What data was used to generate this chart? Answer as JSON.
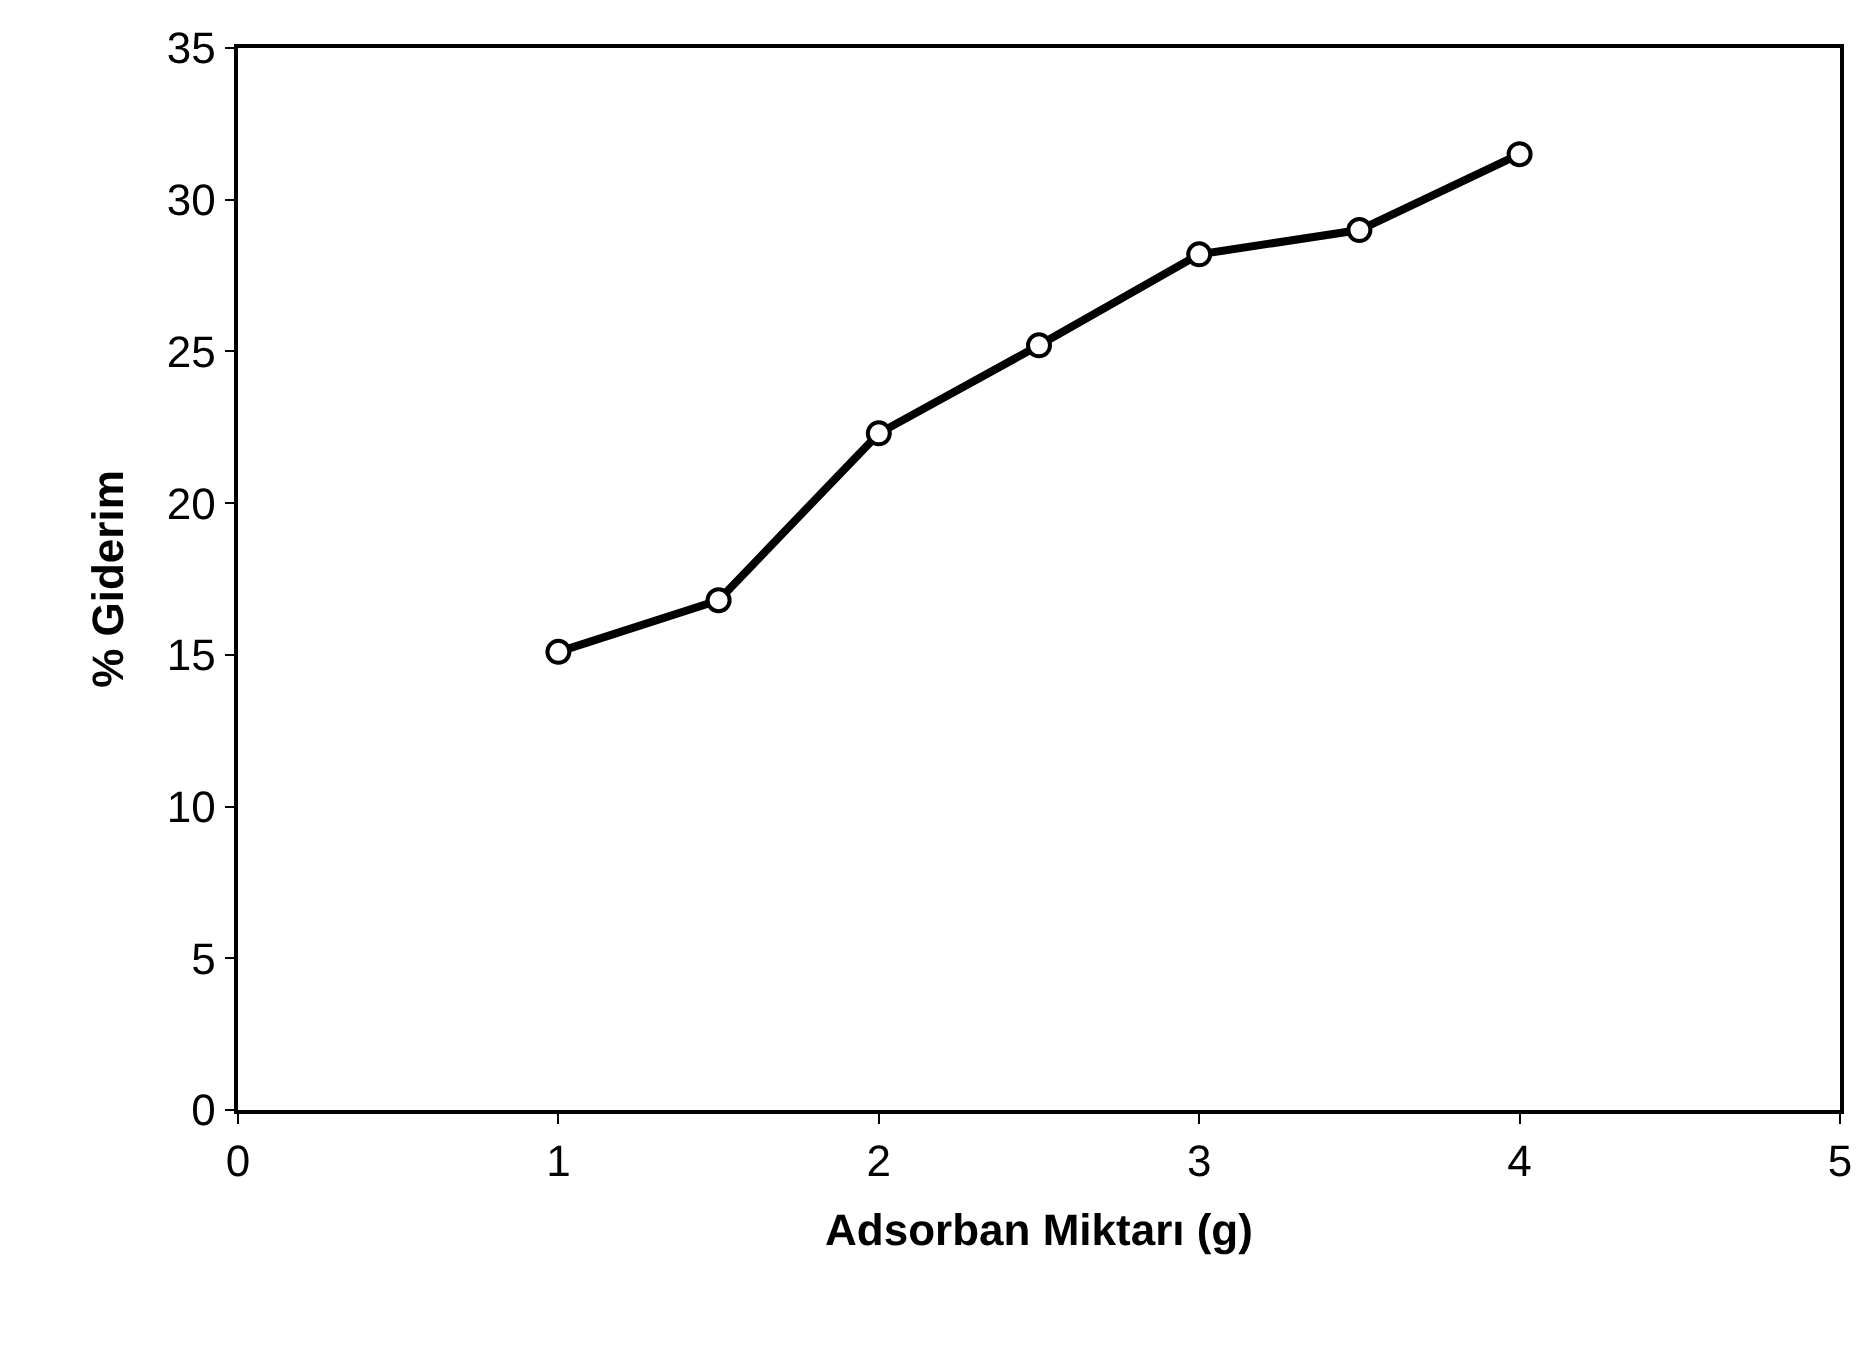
{
  "chart_data": {
    "type": "line",
    "xlabel": "Adsorban Miktarı (g)",
    "ylabel": "% Giderim",
    "x": [
      1,
      1.5,
      2,
      2.5,
      3,
      3.5,
      4
    ],
    "series": [
      {
        "color": "#000000",
        "values": [
          15.1,
          16.8,
          22.3,
          25.2,
          28.2,
          29.0,
          31.5
        ]
      }
    ],
    "xlim": [
      0,
      5
    ],
    "xticks": [
      0,
      1,
      2,
      3,
      4,
      5
    ],
    "ylim": [
      0,
      35
    ],
    "yticks": [
      0,
      5,
      10,
      15,
      20,
      25,
      30,
      35
    ],
    "grid": false,
    "legend": false,
    "marker": "circle",
    "line_style": "solid"
  }
}
